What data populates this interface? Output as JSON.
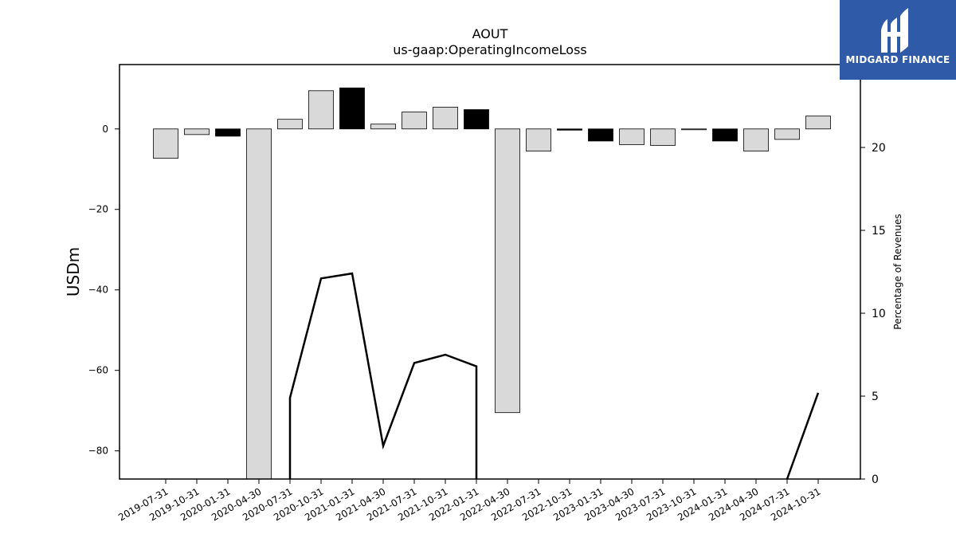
{
  "chart_data": {
    "type": "bar",
    "title": "AOUT",
    "subtitle": "us-gaap:OperatingIncomeLoss",
    "ylabel": "USDm",
    "y2label": "Percentage of Revenues",
    "ylim": [
      -87,
      16
    ],
    "y2lim": [
      0,
      25
    ],
    "yticks": [
      0,
      -20,
      -40,
      -60,
      -80
    ],
    "y2ticks": [
      0,
      5,
      10,
      15,
      20
    ],
    "categories": [
      "2019-07-31",
      "2019-10-31",
      "2020-01-31",
      "2020-04-30",
      "2020-07-31",
      "2020-10-31",
      "2021-01-31",
      "2021-04-30",
      "2021-07-31",
      "2021-10-31",
      "2022-01-31",
      "2022-04-30",
      "2022-07-31",
      "2022-10-31",
      "2023-01-31",
      "2023-04-30",
      "2023-07-31",
      "2023-10-31",
      "2024-01-31",
      "2024-04-30",
      "2024-07-31",
      "2024-10-31"
    ],
    "series": [
      {
        "type": "bar",
        "values": [
          -7.3,
          -1.4,
          -1.8,
          -90,
          2.4,
          9.5,
          10.2,
          1.2,
          4.2,
          5.4,
          4.8,
          -70.5,
          -5.5,
          -0.3,
          -3.0,
          -3.9,
          -4.1,
          -0.1,
          -3.0,
          -5.5,
          -2.6,
          3.2
        ],
        "highlight": [
          false,
          false,
          true,
          false,
          false,
          false,
          true,
          false,
          false,
          false,
          true,
          false,
          false,
          true,
          true,
          false,
          false,
          false,
          true,
          false,
          false,
          false
        ]
      },
      {
        "type": "line",
        "axis": "right",
        "values": [
          null,
          null,
          null,
          null,
          4.9,
          12.1,
          12.4,
          2.0,
          7.0,
          7.5,
          6.8,
          null,
          null,
          null,
          null,
          null,
          null,
          null,
          null,
          null,
          0,
          5.2
        ],
        "clip_at_zero": [
          false,
          false,
          false,
          false,
          true,
          false,
          false,
          false,
          false,
          false,
          true,
          false,
          false,
          false,
          false,
          false,
          false,
          false,
          false,
          false,
          false,
          false
        ]
      }
    ],
    "colors": {
      "bar": "#d9d9d9",
      "bar_highlight": "#000000",
      "line": "#000000"
    },
    "grid": false
  },
  "logo": {
    "text": "MIDGARD FINANCE",
    "icon": "midgard-logo-icon",
    "color": "#2f5aa8"
  }
}
